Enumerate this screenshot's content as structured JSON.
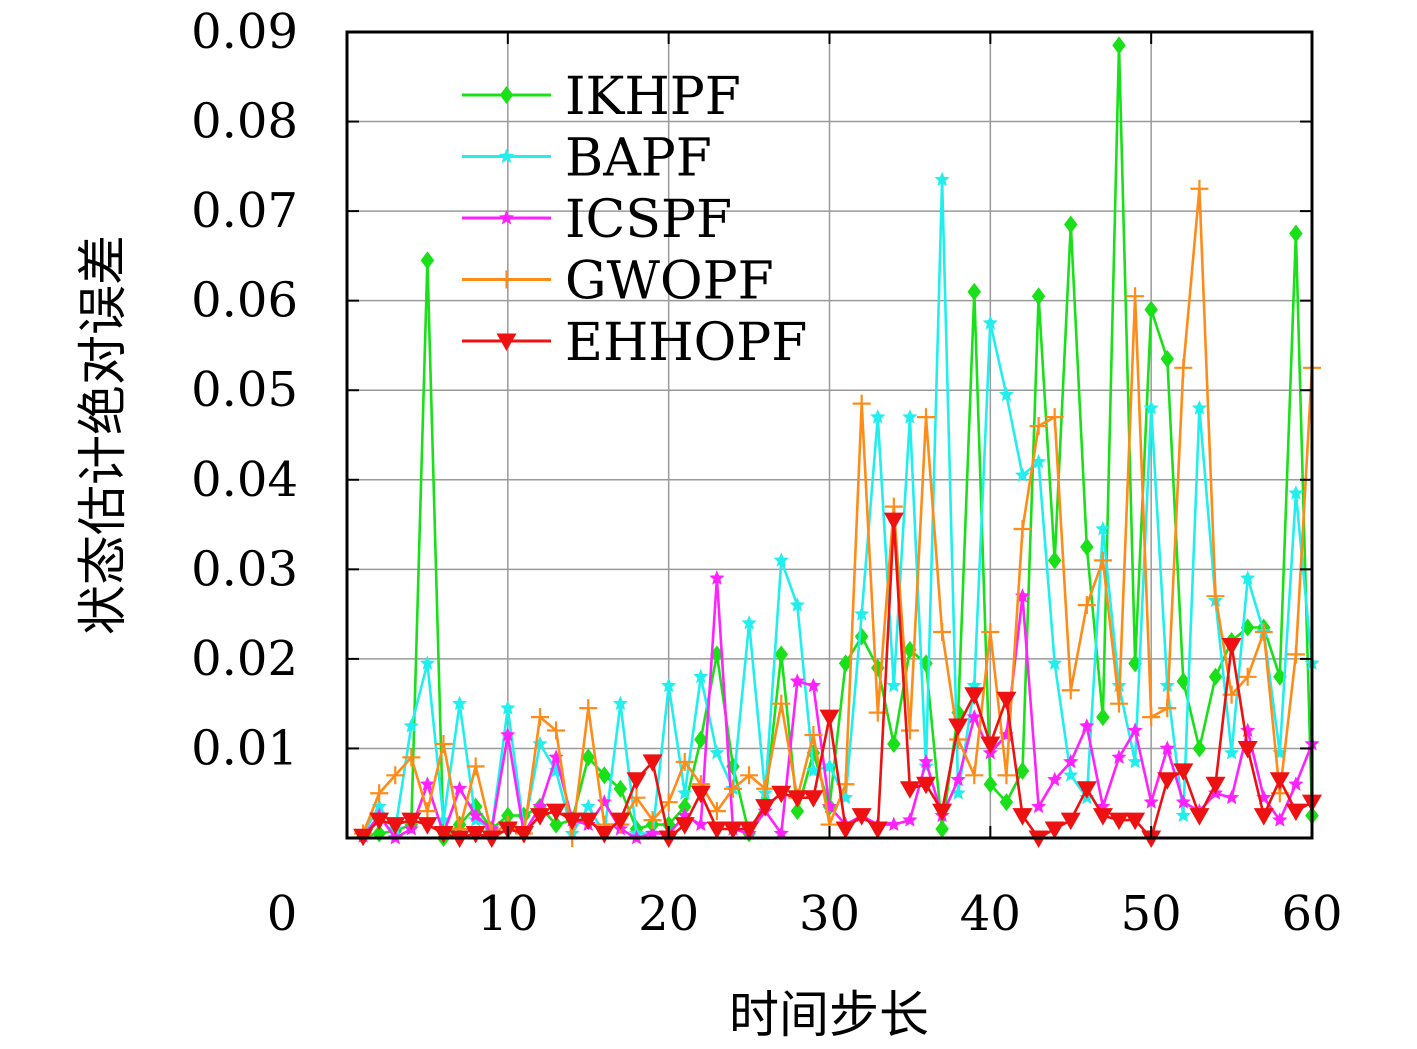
{
  "chart_data": {
    "type": "line",
    "title": "",
    "xlabel": "时间步长",
    "ylabel": "状态估计绝对误差",
    "xlim": [
      0,
      60
    ],
    "ylim": [
      0,
      0.09
    ],
    "x_ticks": [
      "0",
      "10",
      "20",
      "30",
      "40",
      "50",
      "60"
    ],
    "y_ticks": [
      "0.01",
      "0.02",
      "0.03",
      "0.04",
      "0.05",
      "0.06",
      "0.07",
      "0.08",
      "0.09"
    ],
    "grid": true,
    "legend_position": "top-left",
    "x": [
      1,
      2,
      3,
      4,
      5,
      6,
      7,
      8,
      9,
      10,
      11,
      12,
      13,
      14,
      15,
      16,
      17,
      18,
      19,
      20,
      21,
      22,
      23,
      24,
      25,
      26,
      27,
      28,
      29,
      30,
      31,
      32,
      33,
      34,
      35,
      36,
      37,
      38,
      39,
      40,
      41,
      42,
      43,
      44,
      45,
      46,
      47,
      48,
      49,
      50,
      51,
      52,
      53,
      54,
      55,
      56,
      57,
      58,
      59,
      60
    ],
    "series": [
      {
        "name": "IKHPF",
        "color": "#19e019",
        "marker": "diamond",
        "values": [
          0.0002,
          0.0005,
          0.0008,
          0.0015,
          0.0645,
          0,
          0.0015,
          0.0035,
          0.001,
          0.0025,
          0.0025,
          0.0035,
          0.0015,
          0.002,
          0.009,
          0.007,
          0.0055,
          0.001,
          0.0015,
          0.0015,
          0.0035,
          0.011,
          0.0205,
          0.008,
          0.0005,
          0.004,
          0.0205,
          0.003,
          0.0095,
          0.0035,
          0.0195,
          0.0225,
          0.019,
          0.0105,
          0.021,
          0.0195,
          0.001,
          0.014,
          0.061,
          0.006,
          0.004,
          0.0075,
          0.0605,
          0.031,
          0.0685,
          0.0325,
          0.0135,
          0.0885,
          0.0195,
          0.059,
          0.0535,
          0.0175,
          0.01,
          0.018,
          0.022,
          0.0235,
          0.0235,
          0.018,
          0.0675,
          0.0025
        ]
      },
      {
        "name": "BAPF",
        "color": "#22eeee",
        "marker": "star",
        "values": [
          0.0005,
          0.0035,
          0.001,
          0.0125,
          0.0195,
          0.002,
          0.015,
          0.002,
          0.001,
          0.0145,
          0.001,
          0.0105,
          0.0075,
          0.0005,
          0.0035,
          0.0005,
          0.015,
          0.0005,
          0.0005,
          0.017,
          0.005,
          0.018,
          0.0095,
          0.0055,
          0.024,
          0.005,
          0.031,
          0.026,
          0.0075,
          0.008,
          0.0045,
          0.025,
          0.047,
          0.017,
          0.047,
          0.008,
          0.0735,
          0.005,
          0.017,
          0.0575,
          0.0495,
          0.0405,
          0.042,
          0.0195,
          0.007,
          0.0045,
          0.0345,
          0.017,
          0.0085,
          0.048,
          0.017,
          0.0025,
          0.048,
          0.0265,
          0.0095,
          0.029,
          0.023,
          0.0095,
          0.0385,
          0.0195
        ]
      },
      {
        "name": "ICSPF",
        "color": "#ff22ff",
        "marker": "star",
        "values": [
          0.0002,
          0.0025,
          0,
          0.001,
          0.006,
          0.0005,
          0.0055,
          0.0025,
          0.001,
          0.0115,
          0.0005,
          0.0035,
          0.009,
          0.002,
          0.0015,
          0.004,
          0.001,
          0,
          0.0005,
          0.0005,
          0.0025,
          0.0015,
          0.029,
          0.001,
          0.0005,
          0.003,
          0.0005,
          0.0175,
          0.017,
          0.0035,
          0.0015,
          0.0025,
          0.0015,
          0.0015,
          0.002,
          0.0085,
          0.0025,
          0.0065,
          0.0135,
          0.0095,
          0.0115,
          0.027,
          0.0035,
          0.0065,
          0.0085,
          0.0125,
          0.0035,
          0.009,
          0.012,
          0.004,
          0.01,
          0.004,
          0.003,
          0.005,
          0.0045,
          0.012,
          0.0045,
          0.002,
          0.006,
          0.0105
        ]
      },
      {
        "name": "GWOPF",
        "color": "#ff8c19",
        "marker": "plus",
        "values": [
          0.0005,
          0.005,
          0.007,
          0.009,
          0.003,
          0.0105,
          0.001,
          0.008,
          0.0005,
          0.0015,
          0.0005,
          0.0135,
          0.012,
          0,
          0.0145,
          0.0015,
          0.0015,
          0.0045,
          0.002,
          0.004,
          0.0085,
          0.006,
          0.003,
          0.0055,
          0.007,
          0.0055,
          0.015,
          0.0045,
          0.0115,
          0.0015,
          0.006,
          0.0485,
          0.014,
          0.037,
          0.012,
          0.047,
          0.023,
          0.011,
          0.007,
          0.023,
          0.007,
          0.0345,
          0.046,
          0.047,
          0.0165,
          0.026,
          0.031,
          0.015,
          0.0605,
          0.0135,
          0.0145,
          0.0525,
          0.0725,
          0.027,
          0.016,
          0.018,
          0.023,
          0.005,
          0.0205,
          0.0525
        ]
      },
      {
        "name": "EHHOPF",
        "color": "#ee1111",
        "marker": "triangle-down",
        "values": [
          0.0002,
          0.002,
          0.0015,
          0.002,
          0.0015,
          0.0005,
          0,
          0.0005,
          0,
          0.001,
          0.0005,
          0.0025,
          0.003,
          0.002,
          0.002,
          0.0005,
          0.002,
          0.0065,
          0.0085,
          0,
          0.0015,
          0.005,
          0.001,
          0.001,
          0.001,
          0.0035,
          0.005,
          0.0045,
          0.0045,
          0.0135,
          0.001,
          0.0025,
          0.001,
          0.0355,
          0.0055,
          0.006,
          0.003,
          0.0125,
          0.016,
          0.0105,
          0.0155,
          0.0025,
          0,
          0.001,
          0.002,
          0.0055,
          0.0025,
          0.002,
          0.002,
          0,
          0.0065,
          0.0075,
          0.0025,
          0.006,
          0.0215,
          0.01,
          0.0025,
          0.0065,
          0.003,
          0.004
        ]
      }
    ]
  }
}
